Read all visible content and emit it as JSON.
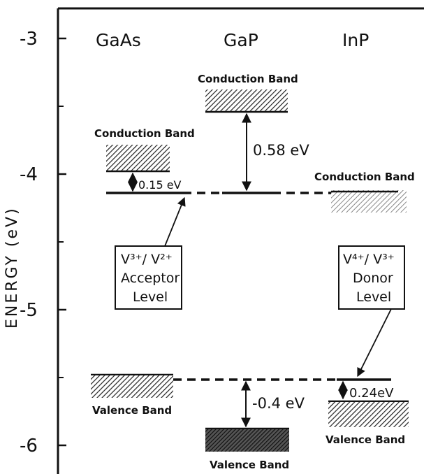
{
  "axis": {
    "ylabel": "ENERGY (eV)",
    "ticks": [
      "-3",
      "-4",
      "-5",
      "-6"
    ]
  },
  "materials": [
    "GaAs",
    "GaP",
    "InP"
  ],
  "bands": {
    "gaas_cb": "Conduction Band",
    "gaas_vb": "Valence Band",
    "gap_cb": "Conduction Band",
    "gap_vb": "Valence Band",
    "inp_cb": "Conduction Band",
    "inp_vb": "Valence Band"
  },
  "gaps": {
    "gaas_acceptor": "0.15 eV",
    "gap_acceptor": "0.58 eV",
    "gap_donor": "-0.4 eV",
    "inp_donor": "0.24eV"
  },
  "acceptor_box": {
    "line1": "V³⁺/ V²⁺",
    "line2": "Acceptor",
    "line3": "Level"
  },
  "donor_box": {
    "line1": "V⁴⁺/ V³⁺",
    "line2": "Donor",
    "line3": "Level"
  },
  "colors": {
    "ink": "#111111",
    "hatch": "#2a2a2a"
  }
}
